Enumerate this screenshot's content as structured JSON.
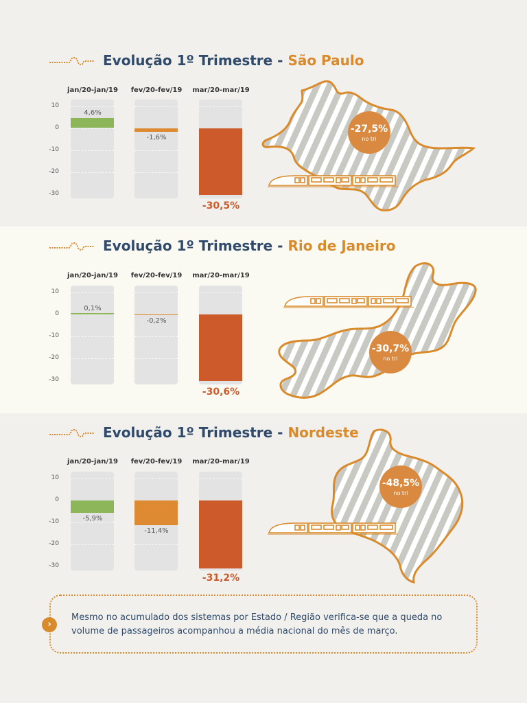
{
  "sections": [
    {
      "title_main": "Evolução 1º Trimestre - ",
      "title_region": "São Paulo",
      "bubble_value": "-27,5%",
      "bubble_sub": "no tri",
      "value_labels": [
        "4,6%",
        "-1,6%",
        "-30,5%"
      ]
    },
    {
      "title_main": "Evolução 1º Trimestre - ",
      "title_region": "Rio de Janeiro",
      "bubble_value": "-30,7%",
      "bubble_sub": "no tri",
      "value_labels": [
        "0,1%",
        "-0,2%",
        "-30,6%"
      ]
    },
    {
      "title_main": "Evolução 1º Trimestre - ",
      "title_region": "Nordeste",
      "bubble_value": "-48,5%",
      "bubble_sub": "no tri",
      "value_labels": [
        "-5,9%",
        "-11,4%",
        "-31,2%"
      ]
    }
  ],
  "note": {
    "text": "Mesmo no acumulado dos sistemas por Estado / Região verifica-se que a queda no volume de passageiros acompanhou a média nacional do mês de março.",
    "icon": "chevron-right-icon"
  },
  "colors": {
    "navy": "#2f4a6b",
    "orange": "#d98a2b",
    "positive_bar": "#8db55a",
    "mid_bar": "#de8a32",
    "deep_bar": "#cc5a2b",
    "column_bg": "#e3e3e3"
  },
  "chart_data": [
    {
      "type": "bar",
      "title": "Evolução 1º Trimestre - São Paulo",
      "categories": [
        "jan/20-jan/19",
        "fev/20-fev/19",
        "mar/20-mar/19"
      ],
      "values": [
        4.6,
        -1.6,
        -30.5
      ],
      "value_labels": [
        "4,6%",
        "-1,6%",
        "-30,5%"
      ],
      "yticks": [
        10,
        0,
        -10,
        -20,
        -30
      ],
      "ylim": [
        -30,
        10
      ],
      "grid": true,
      "annotation": "-27,5% no tri"
    },
    {
      "type": "bar",
      "title": "Evolução 1º Trimestre - Rio de Janeiro",
      "categories": [
        "jan/20-jan/19",
        "fev/20-fev/19",
        "mar/20-mar/19"
      ],
      "values": [
        0.1,
        -0.2,
        -30.6
      ],
      "value_labels": [
        "0,1%",
        "-0,2%",
        "-30,6%"
      ],
      "yticks": [
        10,
        0,
        -10,
        -20,
        -30
      ],
      "ylim": [
        -30,
        10
      ],
      "grid": true,
      "annotation": "-30,7% no tri"
    },
    {
      "type": "bar",
      "title": "Evolução 1º Trimestre - Nordeste",
      "categories": [
        "jan/20-jan/19",
        "fev/20-fev/19",
        "mar/20-mar/19"
      ],
      "values": [
        -5.9,
        -11.4,
        -31.2
      ],
      "value_labels": [
        "-5,9%",
        "-11,4%",
        "-31,2%"
      ],
      "yticks": [
        10,
        0,
        -10,
        -20,
        -30
      ],
      "ylim": [
        -30,
        10
      ],
      "grid": true,
      "annotation": "-48,5% no tri"
    }
  ]
}
